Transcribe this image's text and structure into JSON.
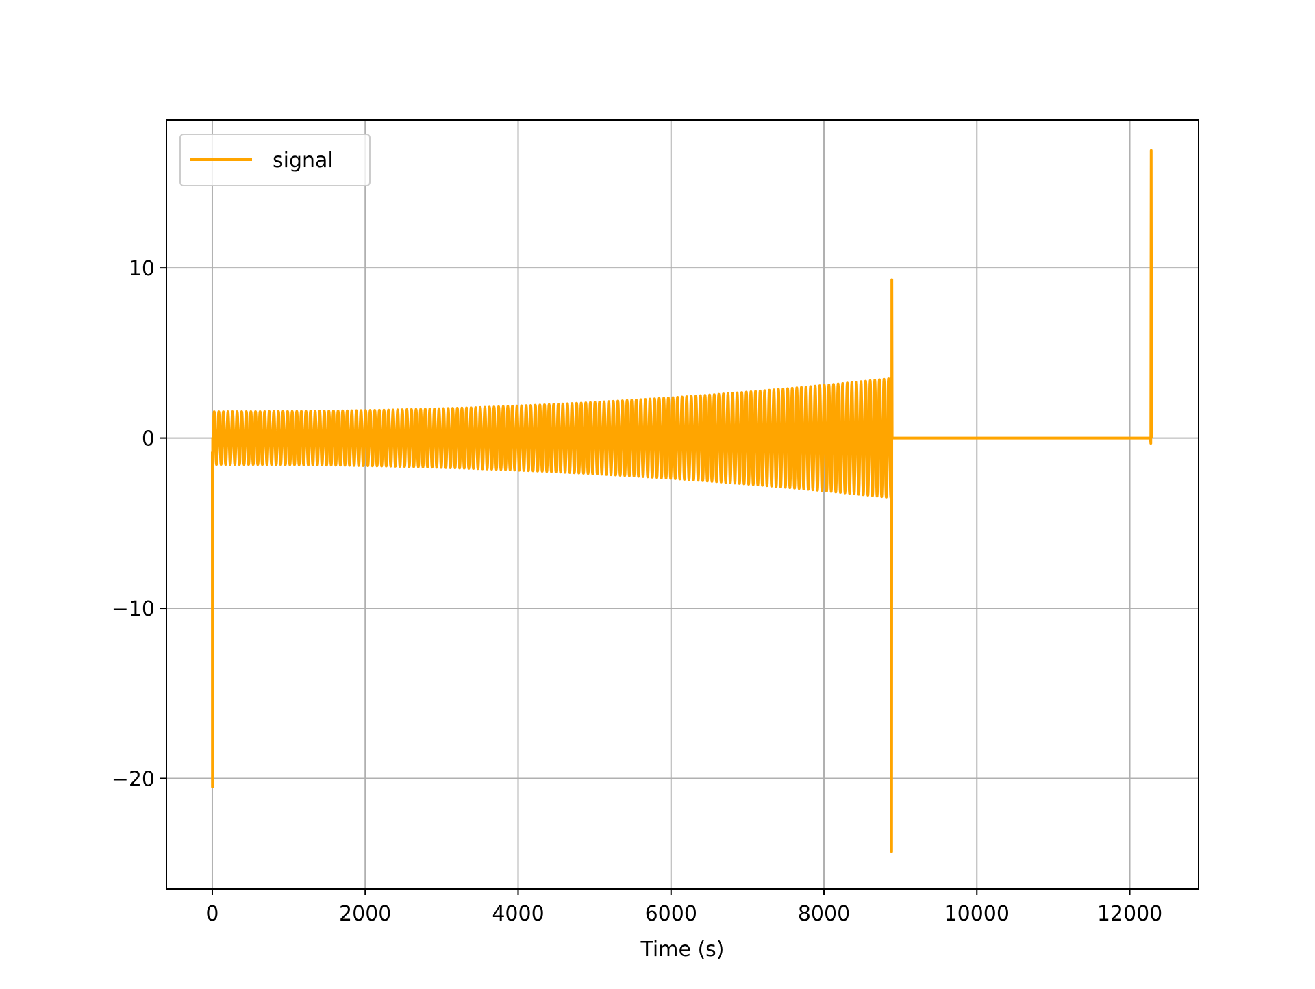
{
  "chart_data": {
    "type": "line",
    "title": "",
    "xlabel": "Time (s)",
    "ylabel": "",
    "xlim": [
      -600,
      12900
    ],
    "ylim": [
      -26.5,
      18.7
    ],
    "x_ticks": [
      0,
      2000,
      4000,
      6000,
      8000,
      10000,
      12000
    ],
    "x_tick_labels": [
      "0",
      "2000",
      "4000",
      "6000",
      "8000",
      "10000",
      "12000"
    ],
    "y_ticks": [
      -20,
      -10,
      0,
      10
    ],
    "y_tick_labels": [
      "−20",
      "−10",
      "0",
      "10"
    ],
    "grid": true,
    "legend": {
      "position": "top-left"
    },
    "series": [
      {
        "name": "signal",
        "color": "#FFA500",
        "description_segments": [
          {
            "kind": "spike",
            "x": [
              0,
              2,
              5
            ],
            "y": [
              -0.8,
              -20.5,
              0.0
            ]
          },
          {
            "kind": "oscillation",
            "x_start": 10,
            "x_end": 8880,
            "period": 60,
            "amplitude_start": 1.55,
            "amplitude_end": 3.5
          },
          {
            "kind": "spike",
            "x": [
              8880,
              8885,
              8888,
              8892
            ],
            "y": [
              3.5,
              -24.3,
              9.3,
              0.0
            ]
          },
          {
            "kind": "flat",
            "x": [
              8892,
              12270
            ],
            "y": [
              0.0,
              0.0
            ]
          },
          {
            "kind": "spike",
            "x": [
              12270,
              12275,
              12280,
              12285
            ],
            "y": [
              0.0,
              -0.3,
              16.9,
              0.0
            ]
          }
        ]
      }
    ]
  }
}
